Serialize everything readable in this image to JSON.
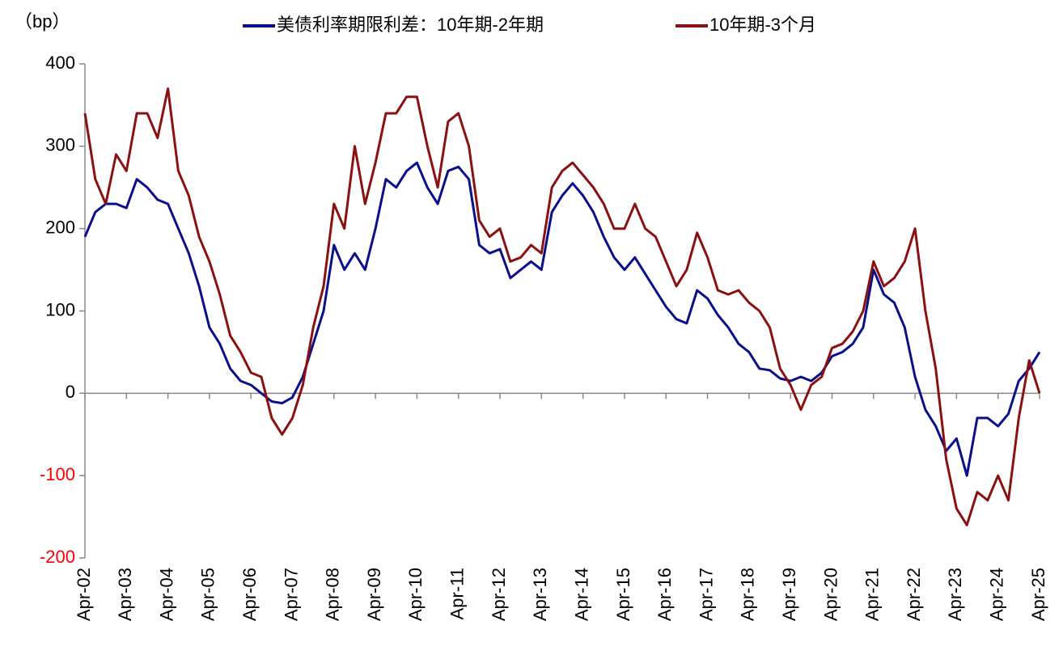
{
  "chart_data": {
    "type": "line",
    "unit_label": "（bp）",
    "categories": [
      "Apr-02",
      null,
      null,
      null,
      "Apr-03",
      null,
      null,
      null,
      "Apr-04",
      null,
      null,
      null,
      "Apr-05",
      null,
      null,
      null,
      "Apr-06",
      null,
      null,
      null,
      "Apr-07",
      null,
      null,
      null,
      "Apr-08",
      null,
      null,
      null,
      "Apr-09",
      null,
      null,
      null,
      "Apr-10",
      null,
      null,
      null,
      "Apr-11",
      null,
      null,
      null,
      "Apr-12",
      null,
      null,
      null,
      "Apr-13",
      null,
      null,
      null,
      "Apr-14",
      null,
      null,
      null,
      "Apr-15",
      null,
      null,
      null,
      "Apr-16",
      null,
      null,
      null,
      "Apr-17",
      null,
      null,
      null,
      "Apr-18",
      null,
      null,
      null,
      "Apr-19",
      null,
      null,
      null,
      "Apr-20",
      null,
      null,
      null,
      "Apr-21",
      null,
      null,
      null,
      "Apr-22",
      null,
      null,
      null,
      "Apr-23",
      null,
      null,
      null,
      "Apr-24",
      null,
      null,
      null,
      "Apr-25"
    ],
    "series": [
      {
        "name": "美债利率期限利差：10年期-2年期",
        "color": "#0a0f8c",
        "values": [
          190,
          220,
          230,
          230,
          225,
          260,
          250,
          235,
          230,
          200,
          170,
          130,
          80,
          60,
          30,
          15,
          10,
          0,
          -10,
          -12,
          -5,
          20,
          60,
          100,
          180,
          150,
          170,
          150,
          200,
          260,
          250,
          270,
          280,
          250,
          230,
          270,
          275,
          260,
          180,
          170,
          175,
          140,
          150,
          160,
          150,
          220,
          240,
          255,
          240,
          220,
          190,
          165,
          150,
          165,
          145,
          125,
          105,
          90,
          85,
          125,
          115,
          95,
          80,
          60,
          50,
          30,
          28,
          18,
          15,
          20,
          15,
          25,
          45,
          50,
          60,
          80,
          150,
          120,
          110,
          80,
          20,
          -20,
          -40,
          -70,
          -55,
          -100,
          -30,
          -30,
          -40,
          -25,
          15,
          30,
          50
        ]
      },
      {
        "name": "10年期-3个月",
        "color": "#8b1010",
        "values": [
          340,
          260,
          230,
          290,
          270,
          340,
          340,
          310,
          370,
          270,
          240,
          190,
          160,
          120,
          70,
          50,
          25,
          20,
          -30,
          -50,
          -30,
          10,
          80,
          130,
          230,
          200,
          300,
          230,
          280,
          340,
          340,
          360,
          360,
          300,
          250,
          330,
          340,
          300,
          210,
          190,
          200,
          160,
          165,
          180,
          170,
          250,
          270,
          280,
          265,
          250,
          230,
          200,
          200,
          230,
          200,
          190,
          160,
          130,
          150,
          195,
          165,
          125,
          120,
          125,
          110,
          100,
          80,
          30,
          10,
          -20,
          10,
          20,
          55,
          60,
          75,
          100,
          160,
          130,
          140,
          160,
          200,
          100,
          30,
          -80,
          -140,
          -160,
          -120,
          -130,
          -100,
          -130,
          -30,
          40,
          0
        ]
      }
    ],
    "ylim": [
      -200,
      400
    ],
    "yticks": [
      -200,
      -100,
      0,
      100,
      200,
      300,
      400
    ],
    "negative_tick_color": "#ff0000"
  }
}
